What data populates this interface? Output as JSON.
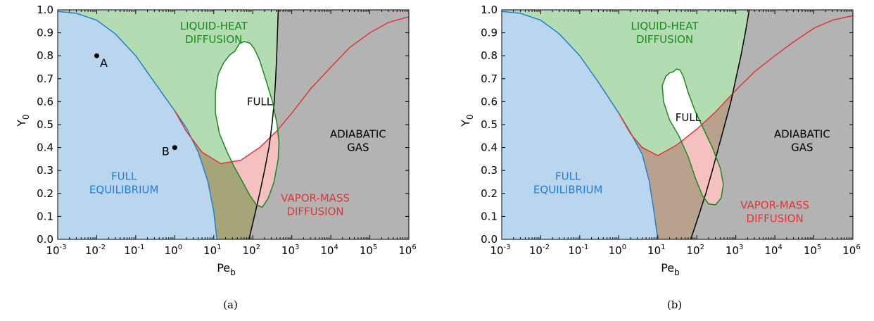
{
  "chart_data": [
    {
      "type": "area",
      "caption": "(a)",
      "xlabel": "Pe",
      "xlabel_sub": "b",
      "ylabel": "Y",
      "ylabel_sub": "0",
      "x_scale": "log",
      "xlim": [
        0.001,
        1000000
      ],
      "ylim": [
        0,
        1
      ],
      "xtick_exponents": [
        "-3",
        "-2",
        "-1",
        "0",
        "1",
        "2",
        "3",
        "4",
        "5",
        "6"
      ],
      "ytick_labels": [
        "0.0",
        "0.1",
        "0.2",
        "0.3",
        "0.4",
        "0.5",
        "0.6",
        "0.7",
        "0.8",
        "0.9",
        "1.0"
      ],
      "grid": false,
      "colors": {
        "blue": "#1f7fd4",
        "green": "#1a8a1a",
        "red": "#e03535",
        "black": "#000000",
        "fill_blue": "#b9d6ee",
        "fill_green": "#b3dcb3",
        "fill_red": "#f4c0c0",
        "fill_olive": "#a6a57a",
        "fill_gray": "#b3b3b3"
      },
      "regions": [
        {
          "name": "FULL EQUILIBRIUM",
          "lines": [
            "FULL",
            "EQUILIBRIUM"
          ],
          "color": "#1f7fd4",
          "at": [
            0.05,
            0.245
          ]
        },
        {
          "name": "LIQUID-HEAT DIFFUSION",
          "lines": [
            "LIQUID-HEAT",
            "DIFFUSION"
          ],
          "color": "#1a8a1a",
          "at": [
            10,
            0.9
          ]
        },
        {
          "name": "FULL",
          "lines": [
            "FULL"
          ],
          "color": "#000000",
          "at": [
            150,
            0.6
          ]
        },
        {
          "name": "ADIABATIC GAS",
          "lines": [
            "ADIABATIC",
            "GAS"
          ],
          "color": "#000000",
          "at": [
            50000,
            0.43
          ]
        },
        {
          "name": "VAPOR-MASS DIFFUSION",
          "lines": [
            "VAPOR-MASS",
            "DIFFUSION"
          ],
          "color": "#e03535",
          "at": [
            4000,
            0.15
          ]
        }
      ],
      "points": [
        {
          "label": "A",
          "x": 0.01,
          "y": 0.8
        },
        {
          "label": "B",
          "x": 1.0,
          "y": 0.4
        }
      ],
      "curves": {
        "blue": [
          [
            0.001,
            0.993
          ],
          [
            0.003,
            0.985
          ],
          [
            0.01,
            0.955
          ],
          [
            0.03,
            0.895
          ],
          [
            0.1,
            0.8
          ],
          [
            0.3,
            0.685
          ],
          [
            1,
            0.56
          ],
          [
            2,
            0.485
          ],
          [
            4,
            0.38
          ],
          [
            7,
            0.255
          ],
          [
            10,
            0.12
          ],
          [
            12,
            0.0
          ]
        ],
        "red": [
          [
            1,
            0.56
          ],
          [
            2,
            0.47
          ],
          [
            5,
            0.38
          ],
          [
            15,
            0.33
          ],
          [
            50,
            0.345
          ],
          [
            150,
            0.4
          ],
          [
            400,
            0.47
          ],
          [
            1000,
            0.55
          ],
          [
            3000,
            0.655
          ],
          [
            10000,
            0.75
          ],
          [
            30000,
            0.835
          ],
          [
            100000,
            0.9
          ],
          [
            300000,
            0.945
          ],
          [
            1000000,
            0.97
          ]
        ],
        "black": [
          [
            80,
            0.0
          ],
          [
            110,
            0.1
          ],
          [
            150,
            0.2
          ],
          [
            200,
            0.3
          ],
          [
            260,
            0.4
          ],
          [
            310,
            0.5
          ],
          [
            355,
            0.6
          ],
          [
            385,
            0.7
          ],
          [
            410,
            0.8
          ],
          [
            430,
            0.9
          ],
          [
            450,
            1.0
          ]
        ],
        "green_loop": [
          [
            35,
            0.82
          ],
          [
            45,
            0.852
          ],
          [
            60,
            0.862
          ],
          [
            85,
            0.855
          ],
          [
            110,
            0.83
          ],
          [
            150,
            0.78
          ],
          [
            230,
            0.68
          ],
          [
            320,
            0.6
          ],
          [
            420,
            0.5
          ],
          [
            470,
            0.42
          ],
          [
            450,
            0.35
          ],
          [
            350,
            0.25
          ],
          [
            250,
            0.18
          ],
          [
            175,
            0.14
          ],
          [
            125,
            0.15
          ],
          [
            85,
            0.19
          ],
          [
            55,
            0.25
          ],
          [
            35,
            0.31
          ],
          [
            22,
            0.38
          ],
          [
            14,
            0.46
          ],
          [
            11,
            0.55
          ],
          [
            11,
            0.64
          ],
          [
            13,
            0.72
          ],
          [
            18,
            0.77
          ],
          [
            26,
            0.805
          ],
          [
            35,
            0.82
          ]
        ]
      }
    },
    {
      "type": "area",
      "caption": "(b)",
      "xlabel": "Pe",
      "xlabel_sub": "b",
      "ylabel": "Y",
      "ylabel_sub": "0",
      "x_scale": "log",
      "xlim": [
        0.001,
        1000000
      ],
      "ylim": [
        0,
        1
      ],
      "xtick_exponents": [
        "-3",
        "-2",
        "-1",
        "0",
        "1",
        "2",
        "3",
        "4",
        "5",
        "6"
      ],
      "ytick_labels": [
        "0.0",
        "0.1",
        "0.2",
        "0.3",
        "0.4",
        "0.5",
        "0.6",
        "0.7",
        "0.8",
        "0.9",
        "1.0"
      ],
      "grid": false,
      "colors": {
        "blue": "#1f7fd4",
        "green": "#1a8a1a",
        "red": "#e03535",
        "black": "#000000",
        "fill_blue": "#b9d6ee",
        "fill_green": "#b3dcb3",
        "fill_red": "#f4c0c0",
        "fill_olive": "#b8a28e",
        "fill_gray": "#b3b3b3"
      },
      "regions": [
        {
          "name": "FULL EQUILIBRIUM",
          "lines": [
            "FULL",
            "EQUILIBRIUM"
          ],
          "color": "#1f7fd4",
          "at": [
            0.05,
            0.245
          ]
        },
        {
          "name": "LIQUID-HEAT DIFFUSION",
          "lines": [
            "LIQUID-HEAT",
            "DIFFUSION"
          ],
          "color": "#1a8a1a",
          "at": [
            15,
            0.9
          ]
        },
        {
          "name": "FULL",
          "lines": [
            "FULL"
          ],
          "color": "#000000",
          "at": [
            60,
            0.53
          ]
        },
        {
          "name": "ADIABATIC GAS",
          "lines": [
            "ADIABATIC",
            "GAS"
          ],
          "color": "#000000",
          "at": [
            50000,
            0.43
          ]
        },
        {
          "name": "VAPOR-MASS DIFFUSION",
          "lines": [
            "VAPOR-MASS",
            "DIFFUSION"
          ],
          "color": "#e03535",
          "at": [
            10000,
            0.12
          ]
        }
      ],
      "points": [],
      "curves": {
        "blue": [
          [
            0.001,
            0.993
          ],
          [
            0.003,
            0.985
          ],
          [
            0.01,
            0.955
          ],
          [
            0.03,
            0.895
          ],
          [
            0.1,
            0.8
          ],
          [
            0.3,
            0.685
          ],
          [
            1,
            0.55
          ],
          [
            2,
            0.465
          ],
          [
            4,
            0.37
          ],
          [
            6,
            0.255
          ],
          [
            8,
            0.12
          ],
          [
            10,
            0.0
          ]
        ],
        "red": [
          [
            1,
            0.55
          ],
          [
            2,
            0.46
          ],
          [
            4,
            0.4
          ],
          [
            10,
            0.365
          ],
          [
            30,
            0.41
          ],
          [
            100,
            0.48
          ],
          [
            300,
            0.555
          ],
          [
            1000,
            0.65
          ],
          [
            3000,
            0.73
          ],
          [
            10000,
            0.8
          ],
          [
            30000,
            0.86
          ],
          [
            100000,
            0.92
          ],
          [
            300000,
            0.955
          ],
          [
            1000000,
            0.975
          ]
        ],
        "black": [
          [
            70,
            0.0
          ],
          [
            110,
            0.1
          ],
          [
            170,
            0.2
          ],
          [
            250,
            0.3
          ],
          [
            360,
            0.4
          ],
          [
            520,
            0.5
          ],
          [
            750,
            0.6
          ],
          [
            1000,
            0.7
          ],
          [
            1350,
            0.8
          ],
          [
            1750,
            0.9
          ],
          [
            2200,
            1.0
          ]
        ],
        "green_loop": [
          [
            25,
            0.73
          ],
          [
            30,
            0.742
          ],
          [
            37,
            0.738
          ],
          [
            45,
            0.71
          ],
          [
            60,
            0.64
          ],
          [
            90,
            0.56
          ],
          [
            150,
            0.48
          ],
          [
            250,
            0.4
          ],
          [
            400,
            0.31
          ],
          [
            480,
            0.24
          ],
          [
            420,
            0.18
          ],
          [
            300,
            0.15
          ],
          [
            200,
            0.155
          ],
          [
            140,
            0.19
          ],
          [
            95,
            0.26
          ],
          [
            60,
            0.36
          ],
          [
            35,
            0.45
          ],
          [
            20,
            0.52
          ],
          [
            14,
            0.6
          ],
          [
            13,
            0.67
          ],
          [
            16,
            0.71
          ],
          [
            20,
            0.725
          ],
          [
            25,
            0.73
          ]
        ]
      }
    }
  ]
}
